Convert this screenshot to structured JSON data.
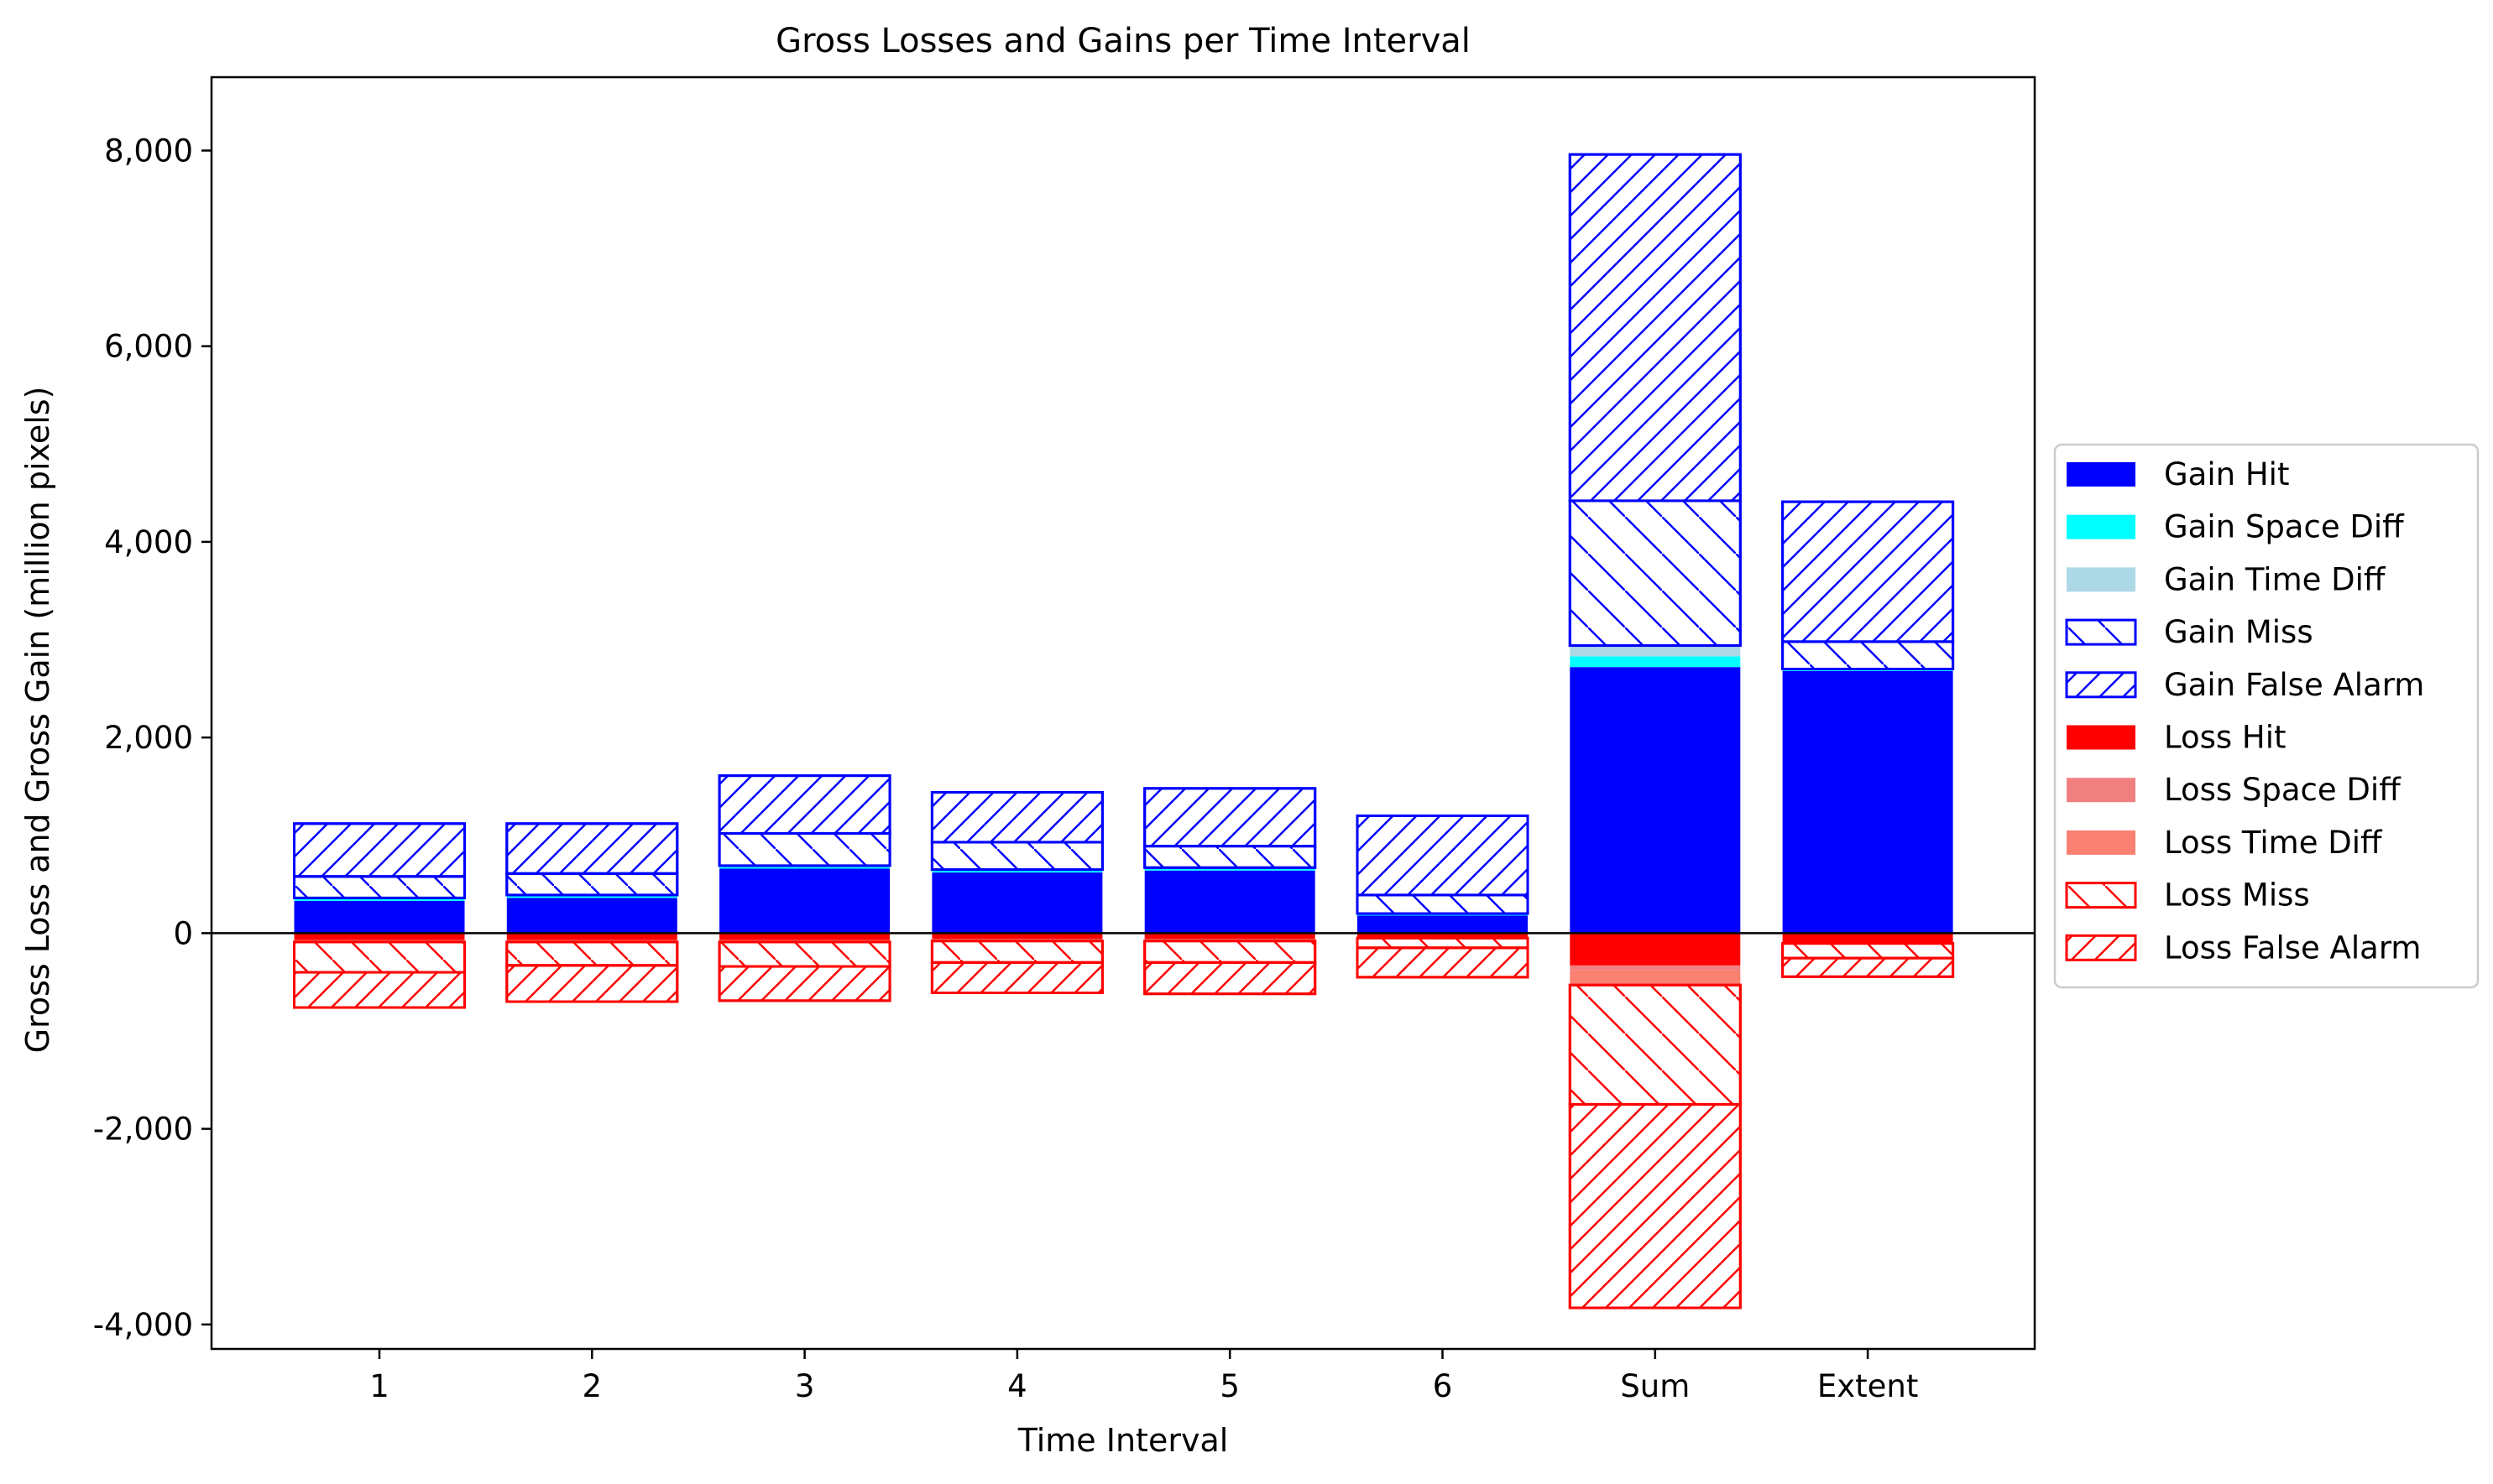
{
  "chart_data": {
    "type": "bar",
    "title": "Gross Losses and Gains per Time Interval",
    "xlabel": "Time Interval",
    "ylabel": "Gross Loss and Gross Gain (million pixels)",
    "categories": [
      "1",
      "2",
      "3",
      "4",
      "5",
      "6",
      "Sum",
      "Extent"
    ],
    "ylim": [
      -4250,
      8750
    ],
    "yticks": [
      -4000,
      -2000,
      0,
      2000,
      4000,
      6000,
      8000
    ],
    "ytick_labels": [
      "-4,000",
      "-2,000",
      "0",
      "2,000",
      "4,000",
      "6,000",
      "8,000"
    ],
    "grid": false,
    "legend_position": "center-right-outside",
    "gain_series": [
      {
        "name": "Gain Hit",
        "color": "#0000ff",
        "pattern": "solid",
        "values": [
          330,
          360,
          660,
          620,
          640,
          180,
          2720,
          2680
        ]
      },
      {
        "name": "Gain Space Diff",
        "color": "#00ffff",
        "pattern": "solid",
        "values": [
          20,
          20,
          20,
          20,
          20,
          10,
          110,
          20
        ]
      },
      {
        "name": "Gain Time Diff",
        "color": "#add8e6",
        "pattern": "solid",
        "values": [
          10,
          10,
          10,
          10,
          10,
          10,
          110,
          0
        ]
      },
      {
        "name": "Gain Miss",
        "color": "#0000ff",
        "pattern": "back-hatch",
        "values": [
          220,
          220,
          330,
          280,
          220,
          190,
          1480,
          280
        ]
      },
      {
        "name": "Gain False Alarm",
        "color": "#0000ff",
        "pattern": "forward-hatch",
        "values": [
          540,
          510,
          590,
          510,
          590,
          810,
          3540,
          1430
        ]
      }
    ],
    "loss_series": [
      {
        "name": "Loss Hit",
        "color": "#ff0000",
        "pattern": "solid",
        "values": [
          -70,
          -70,
          -70,
          -60,
          -60,
          -40,
          -330,
          -100
        ]
      },
      {
        "name": "Loss Space Diff",
        "color": "#f08080",
        "pattern": "solid",
        "values": [
          -10,
          -10,
          -10,
          -10,
          -10,
          -5,
          -50,
          -5
        ]
      },
      {
        "name": "Loss Time Diff",
        "color": "#fa8072",
        "pattern": "solid",
        "values": [
          -10,
          -10,
          -10,
          -10,
          -10,
          -5,
          -150,
          0
        ]
      },
      {
        "name": "Loss Miss",
        "color": "#ff0000",
        "pattern": "back-hatch",
        "values": [
          -310,
          -240,
          -250,
          -220,
          -220,
          -100,
          -1220,
          -150
        ]
      },
      {
        "name": "Loss False Alarm",
        "color": "#ff0000",
        "pattern": "forward-hatch",
        "values": [
          -360,
          -370,
          -350,
          -310,
          -320,
          -300,
          -2080,
          -190
        ]
      }
    ]
  }
}
